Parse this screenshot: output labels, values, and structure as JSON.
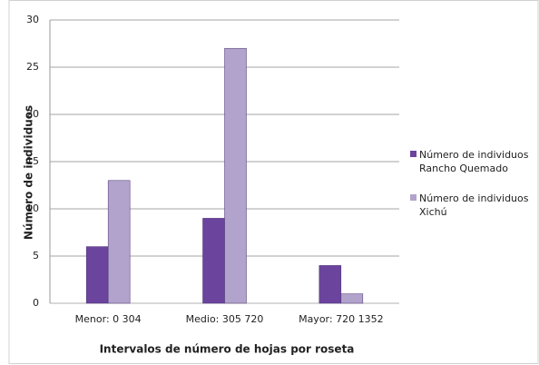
{
  "chart_data": {
    "type": "bar",
    "xlabel": "Intervalos de número de hojas por roseta",
    "ylabel": "Número de individuos",
    "categories": [
      "Menor: 0 304",
      "Medio: 305 720",
      "Mayor: 720 1352"
    ],
    "series": [
      {
        "name": "Número de individuos Rancho Quemado",
        "color": "#6b449e",
        "values": [
          6,
          9,
          4
        ]
      },
      {
        "name": "Número de individuos Xichú",
        "color": "#b2a3cc",
        "values": [
          13,
          27,
          1
        ]
      }
    ],
    "ylim": [
      0,
      30
    ],
    "yticks": [
      0,
      5,
      10,
      15,
      20,
      25,
      30
    ],
    "grid": true,
    "legend": "right"
  }
}
